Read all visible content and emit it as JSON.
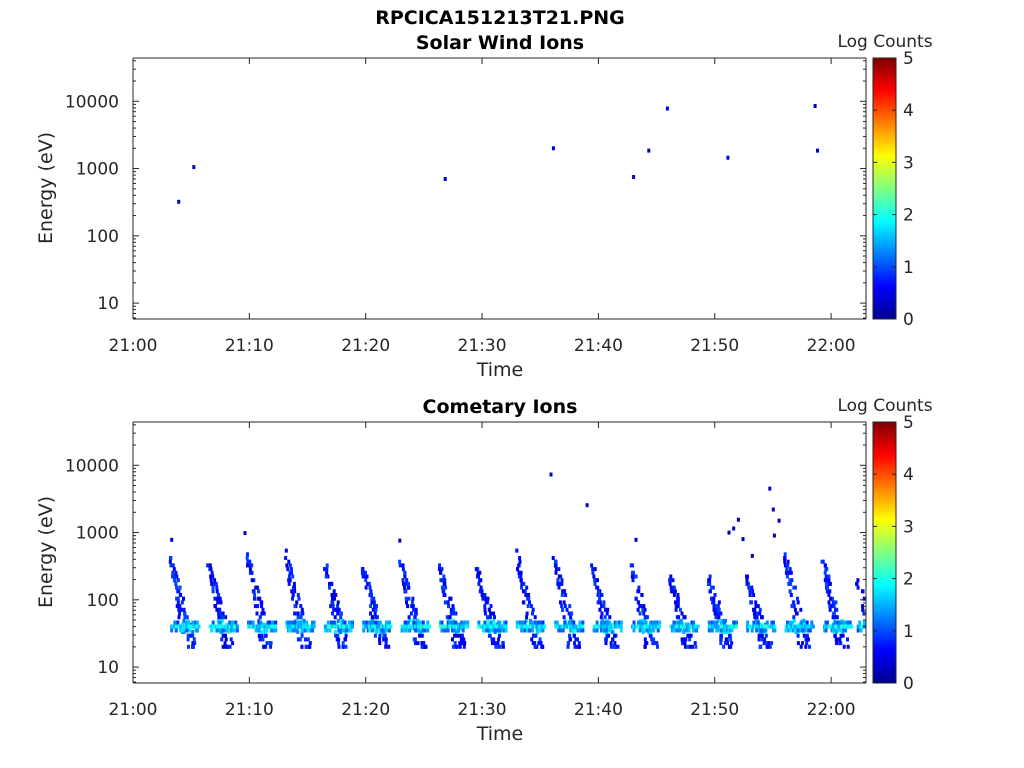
{
  "figure_title": "RPCICA151213T21.PNG",
  "colorbar": {
    "label": "Log Counts",
    "ticks": [
      "0",
      "1",
      "2",
      "3",
      "4",
      "5"
    ],
    "range": [
      0,
      5
    ],
    "colormap": "jet"
  },
  "chart_data": [
    {
      "type": "heatmap",
      "title": "Solar Wind Ions",
      "xlabel": "Time",
      "ylabel": "Energy (eV)",
      "xticks": [
        "21:00",
        "21:10",
        "21:20",
        "21:30",
        "21:40",
        "21:50",
        "22:00"
      ],
      "yticks": [
        "10",
        "100",
        "1000",
        "10000"
      ],
      "xlim_minutes": [
        0,
        63
      ],
      "ylim": [
        5.8,
        44000
      ],
      "yscale": "log",
      "points": [
        {
          "t": 3.8,
          "e": 320,
          "v": 0.4
        },
        {
          "t": 5.1,
          "e": 1050,
          "v": 0.4
        },
        {
          "t": 26.7,
          "e": 700,
          "v": 0.4
        },
        {
          "t": 36.0,
          "e": 2000,
          "v": 0.4
        },
        {
          "t": 42.9,
          "e": 750,
          "v": 0.4
        },
        {
          "t": 44.2,
          "e": 1850,
          "v": 0.4
        },
        {
          "t": 45.8,
          "e": 7800,
          "v": 0.4
        },
        {
          "t": 51.0,
          "e": 1450,
          "v": 0.4
        },
        {
          "t": 58.5,
          "e": 8500,
          "v": 0.4
        },
        {
          "t": 58.7,
          "e": 1850,
          "v": 0.4
        }
      ]
    },
    {
      "type": "heatmap",
      "title": "Cometary Ions",
      "xlabel": "Time",
      "ylabel": "Energy (eV)",
      "xticks": [
        "21:00",
        "21:10",
        "21:20",
        "21:30",
        "21:40",
        "21:50",
        "22:00"
      ],
      "yticks": [
        "10",
        "100",
        "1000",
        "10000"
      ],
      "xlim_minutes": [
        0,
        63
      ],
      "ylim": [
        5.8,
        44000
      ],
      "yscale": "log",
      "sweep_period_minutes": 3.35,
      "bursts": [
        {
          "t": 3.0,
          "emax": 450
        },
        {
          "t": 6.3,
          "emax": 350
        },
        {
          "t": 9.6,
          "emax": 500
        },
        {
          "t": 12.9,
          "emax": 550
        },
        {
          "t": 16.2,
          "emax": 450
        },
        {
          "t": 19.5,
          "emax": 350
        },
        {
          "t": 22.8,
          "emax": 380
        },
        {
          "t": 26.1,
          "emax": 350
        },
        {
          "t": 29.4,
          "emax": 300
        },
        {
          "t": 32.7,
          "emax": 600
        },
        {
          "t": 36.0,
          "emax": 450
        },
        {
          "t": 39.3,
          "emax": 350
        },
        {
          "t": 42.6,
          "emax": 350
        },
        {
          "t": 45.9,
          "emax": 250
        },
        {
          "t": 49.2,
          "emax": 250
        },
        {
          "t": 52.5,
          "emax": 250
        },
        {
          "t": 55.8,
          "emax": 500
        },
        {
          "t": 59.1,
          "emax": 400
        },
        {
          "t": 62.0,
          "emax": 220
        }
      ],
      "sparse_points": [
        {
          "t": 3.2,
          "e": 780,
          "v": 0.3
        },
        {
          "t": 9.5,
          "e": 980,
          "v": 0.3
        },
        {
          "t": 22.8,
          "e": 760,
          "v": 0.3
        },
        {
          "t": 35.8,
          "e": 7300,
          "v": 0.4
        },
        {
          "t": 38.9,
          "e": 2550,
          "v": 0.4
        },
        {
          "t": 43.1,
          "e": 780,
          "v": 0.3
        },
        {
          "t": 51.1,
          "e": 1000,
          "v": 0.3
        },
        {
          "t": 51.5,
          "e": 1150,
          "v": 0.3
        },
        {
          "t": 51.9,
          "e": 1550,
          "v": 0.3
        },
        {
          "t": 52.3,
          "e": 800,
          "v": 0.3
        },
        {
          "t": 54.6,
          "e": 4500,
          "v": 0.4
        },
        {
          "t": 54.9,
          "e": 2200,
          "v": 0.3
        },
        {
          "t": 55.4,
          "e": 1500,
          "v": 0.3
        },
        {
          "t": 55.0,
          "e": 900,
          "v": 0.3
        },
        {
          "t": 53.1,
          "e": 450,
          "v": 0.3
        }
      ]
    }
  ]
}
